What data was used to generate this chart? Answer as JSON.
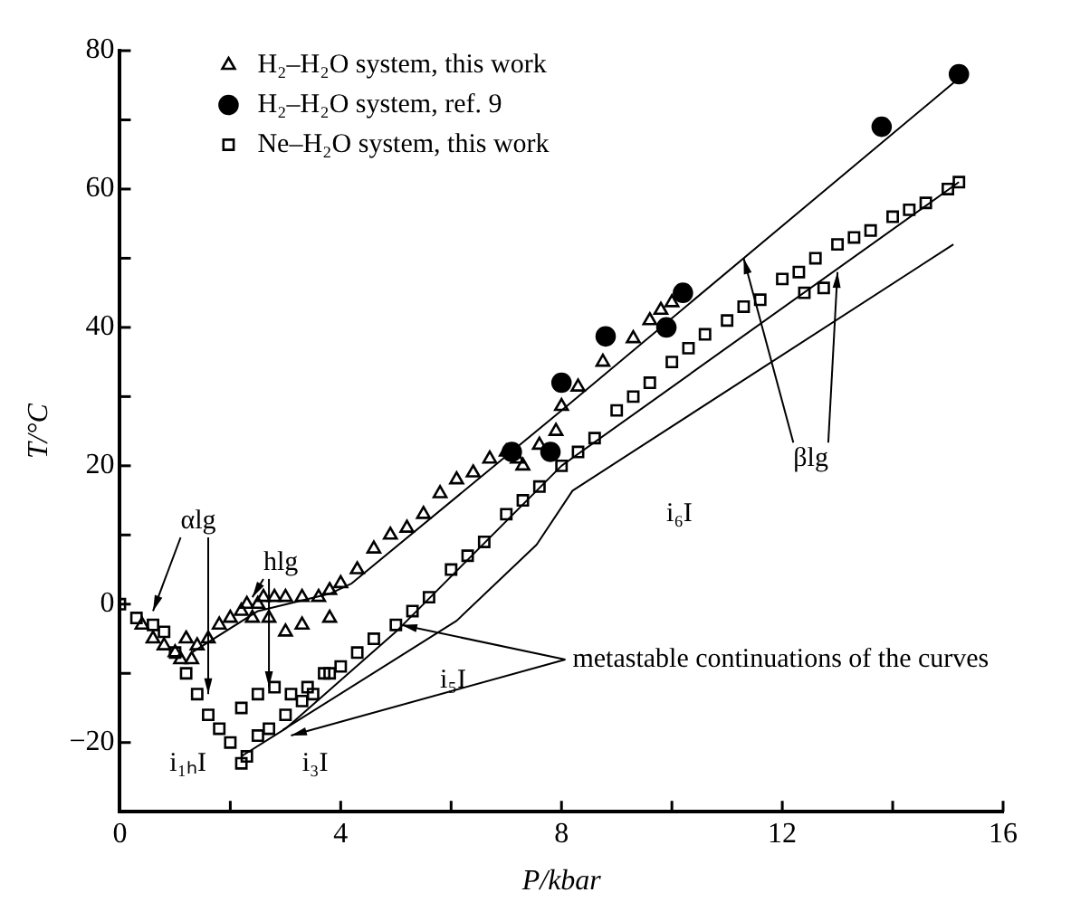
{
  "chart_data": {
    "type": "scatter",
    "xlabel": "P/kbar",
    "ylabel": "T/°C",
    "xlim": [
      0,
      16
    ],
    "ylim": [
      -30,
      80
    ],
    "xticks": [
      0,
      {
        "value": 2,
        "label": null
      },
      4,
      {
        "value": 6,
        "label": null
      },
      8,
      {
        "value": 10,
        "label": null
      },
      12,
      {
        "value": 14,
        "label": null
      },
      16
    ],
    "yticks": [
      {
        "value": -30,
        "label": null
      },
      -20,
      {
        "value": -10,
        "label": null
      },
      0,
      {
        "value": 10,
        "label": null
      },
      20,
      {
        "value": 30,
        "label": null
      },
      40,
      {
        "value": 50,
        "label": null
      },
      60,
      {
        "value": 70,
        "label": null
      },
      80
    ],
    "grid": false,
    "legend": "top left",
    "series": [
      {
        "name": "H₂–H₂O system, this work",
        "marker": "triangle",
        "color": "#000000",
        "x": [
          0.4,
          0.6,
          0.8,
          1.0,
          1.1,
          1.3,
          1.4,
          1.6,
          1.8,
          2.0,
          2.2,
          2.3,
          2.5,
          2.6,
          2.8,
          3.0,
          3.3,
          3.6,
          3.8,
          4.0,
          4.3,
          4.6,
          4.9,
          5.2,
          5.5,
          5.8,
          6.1,
          6.4,
          6.7,
          7.0,
          7.2,
          7.3,
          7.6,
          7.9,
          8.0,
          8.3,
          8.75,
          9.3,
          9.6,
          9.8,
          10.0,
          1.2,
          2.4,
          2.7,
          3.0,
          3.3,
          3.8
        ],
        "values": [
          -3,
          -5,
          -6,
          -7,
          -8,
          -8,
          -6,
          -5,
          -3,
          -2,
          -1,
          0,
          0,
          1,
          1,
          1,
          1,
          1,
          2,
          3,
          5,
          8,
          10,
          11,
          13,
          16,
          18,
          19,
          21,
          22,
          21,
          20,
          23,
          25,
          28.6,
          31.4,
          35,
          38.4,
          41,
          42.5,
          43.6,
          -5,
          -2,
          -2,
          -4,
          -3,
          -2
        ]
      },
      {
        "name": "H₂–H₂O system, ref. 9",
        "marker": "circle",
        "color": "#000000",
        "x": [
          7.1,
          7.8,
          8.0,
          8.8,
          9.9,
          10.2,
          13.8,
          15.2
        ],
        "values": [
          22,
          22,
          32,
          38.7,
          40,
          45,
          69,
          76.6
        ]
      },
      {
        "name": "Ne–H₂O system, this work",
        "marker": "square",
        "color": "#000000",
        "x": [
          0,
          0.3,
          0.6,
          0.8,
          1.0,
          1.2,
          1.4,
          1.6,
          1.8,
          2.0,
          2.2,
          2.3,
          2.5,
          2.7,
          3.0,
          3.3,
          3.5,
          3.8,
          4.0,
          4.3,
          4.6,
          5.0,
          5.3,
          5.6,
          6.0,
          6.3,
          6.6,
          7.0,
          7.3,
          7.6,
          8.0,
          8.3,
          8.6,
          9.0,
          9.3,
          9.6,
          10.0,
          10.3,
          10.6,
          11.0,
          11.3,
          11.6,
          12.0,
          12.3,
          12.6,
          13.0,
          13.3,
          13.6,
          14.0,
          14.3,
          14.6,
          15.0,
          15.2,
          2.2,
          2.5,
          2.8,
          3.1,
          3.4,
          3.7,
          12.4,
          12.75
        ],
        "values": [
          0,
          -2,
          -3,
          -4,
          -7,
          -10,
          -13,
          -16,
          -18,
          -20,
          -23,
          -22,
          -19,
          -18,
          -16,
          -14,
          -13,
          -10,
          -9,
          -7,
          -5,
          -3,
          -1,
          1,
          5,
          7,
          9,
          13,
          15,
          17,
          20,
          22,
          24,
          28,
          30,
          32,
          35,
          37,
          39,
          41,
          43,
          44,
          47,
          48,
          50,
          52,
          53,
          54,
          56,
          57,
          58,
          60,
          61,
          -15,
          -13,
          -12,
          -13,
          -12,
          -10,
          45,
          45.7
        ]
      },
      {
        "type": "line",
        "marker": "none",
        "color": "#000000",
        "x": [
          1.3,
          2.5,
          3.8,
          4.2,
          8.0,
          15.2
        ],
        "values": [
          -7,
          -1,
          1.5,
          3,
          28,
          76
        ]
      },
      {
        "type": "line",
        "marker": "none",
        "color": "#000000",
        "x": [
          2.2,
          3.0,
          5.0,
          8.0,
          15.2
        ],
        "values": [
          -22,
          -18,
          -4,
          20,
          61
        ]
      },
      {
        "type": "line",
        "marker": "none",
        "color": "#000000",
        "x": [
          2.95,
          6.1,
          7.55,
          8.2,
          15.1
        ],
        "values": [
          -18.2,
          -2.4,
          8.6,
          16.4,
          52
        ]
      }
    ],
    "annotations": [
      {
        "text": "αlg",
        "x": 0.6,
        "y": -1
      },
      {
        "text": "hlg",
        "x": 2.4,
        "y": 1
      },
      {
        "text": "βlg",
        "x": 11.3,
        "y": 50
      },
      "i₁ₕI",
      "i₃I",
      "i₅I",
      "i₆I",
      {
        "text": "metastable continuations of the curves",
        "x": 5.1,
        "y": -3
      }
    ]
  }
}
